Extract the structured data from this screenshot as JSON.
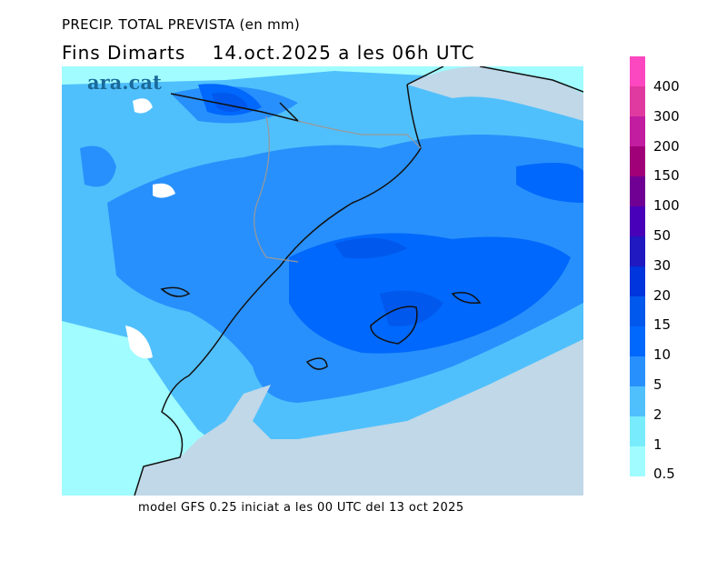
{
  "title": "PRECIP. TOTAL PREVISTA (en mm)",
  "subtitle": "Fins Dimarts    14.oct.2025 a les 06h UTC",
  "footer": "model GFS 0.25 iniciat a les 00 UTC del 13 oct 2025",
  "logo": "ara.cat",
  "legend": {
    "labels": [
      "400",
      "300",
      "200",
      "150",
      "100",
      "50",
      "30",
      "20",
      "15",
      "10",
      "5",
      "2",
      "1",
      "0.5"
    ],
    "colors": [
      "#fc48c0",
      "#e03aa0",
      "#c21ca0",
      "#a00078",
      "#700094",
      "#4800b8",
      "#2018c0",
      "#0034dc",
      "#0058ec",
      "#0068fc",
      "#2890fc",
      "#50c0fc",
      "#78ecfc",
      "#a0fcff"
    ]
  }
}
